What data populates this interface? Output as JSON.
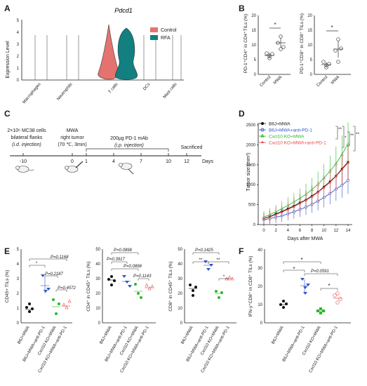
{
  "panels": {
    "A": "A",
    "B": "B",
    "C": "C",
    "D": "D",
    "E": "E",
    "F": "F"
  },
  "colors": {
    "control": "#e4736f",
    "rfa": "#127f80",
    "b6j": "#111111",
    "b6j_pd1": "#2f55c8",
    "cxcl10": "#2eb82e",
    "cxcl10_pd1": "#e8484a"
  },
  "panel_a": {
    "gene": "Pdcd1",
    "ylabel": "Expression Level",
    "y_ticks": [
      "0",
      "1",
      "2",
      "3",
      "4",
      "5"
    ],
    "categories": [
      "Macrophages",
      "Neutrophils",
      "T cells",
      "DCs",
      "Mast cells"
    ],
    "legend": [
      "Control",
      "RFA"
    ]
  },
  "panel_b": {
    "left": {
      "ylabel": "PD-1⁺CD4⁺ in CD4⁺TILs (%)",
      "y_ticks": [
        "0",
        "5",
        "10",
        "15",
        "20"
      ],
      "x": [
        "Control",
        "MWA"
      ],
      "sig": "*"
    },
    "right": {
      "ylabel": "PD-1⁺CD8⁺ in CD8⁺ TILs (%)",
      "y_ticks": [
        "0",
        "5",
        "10",
        "15",
        "20"
      ],
      "x": [
        "Control",
        "MWA"
      ],
      "sig": "*"
    }
  },
  "panel_c": {
    "cells_line1": "2×10⁶ MC38 cells",
    "cells_line2": "bilateral flanks",
    "cells_line3": "(i.d. injection)",
    "mwa_line1": "MWA",
    "mwa_line2": "right tumor",
    "mwa_line3": "(70 ℃, 3min)",
    "mab_line1": "200μg PD-1 mAb",
    "mab_line2": "(i.p. injection)",
    "sacrificed": "Sacrificed",
    "ticks": [
      "-10",
      "0",
      "1",
      "4",
      "7",
      "10",
      "12"
    ],
    "unit": "Days"
  },
  "panel_d": {
    "ylabel": "Tumor size (mm³)",
    "xlabel": "Days after MWA",
    "x_ticks": [
      "0",
      "2",
      "4",
      "6",
      "8",
      "10",
      "12",
      "14"
    ],
    "y_ticks": [
      "0",
      "500",
      "1000",
      "1500",
      "2000",
      "2500"
    ],
    "legend": [
      "B6J+MWA",
      "B6J+MWA+anti-PD-1",
      "Cxcl10 KO+MWA",
      "Cxcl10 KO+MWA+anti-PD-1"
    ],
    "sig": [
      "**",
      "*",
      "**",
      "**"
    ]
  },
  "chart_data": [
    {
      "type": "line",
      "title": "",
      "xlabel": "Days after MWA",
      "ylabel": "Tumor size (mm³)",
      "x": [
        0,
        1,
        2,
        3,
        4,
        5,
        6,
        7,
        8,
        9,
        10,
        11,
        12,
        13,
        14
      ],
      "ylim": [
        0,
        2500
      ],
      "series": [
        {
          "name": "B6J+MWA",
          "values": [
            160,
            200,
            270,
            330,
            400,
            470,
            550,
            620,
            720,
            820,
            950,
            1080,
            1220,
            1400,
            1570
          ]
        },
        {
          "name": "B6J+MWA+anti-PD-1",
          "values": [
            120,
            150,
            185,
            220,
            270,
            320,
            380,
            440,
            510,
            590,
            680,
            780,
            890,
            990,
            1110
          ]
        },
        {
          "name": "Cxcl10 KO+MWA",
          "values": [
            190,
            250,
            320,
            400,
            480,
            570,
            660,
            760,
            880,
            1010,
            1170,
            1340,
            1530,
            1760,
            2030
          ]
        },
        {
          "name": "Cxcl10 KO+MWA+anti-PD-1",
          "values": [
            150,
            190,
            250,
            310,
            380,
            450,
            530,
            610,
            700,
            810,
            930,
            1060,
            1210,
            1380,
            1550
          ]
        }
      ]
    }
  ],
  "panel_e": {
    "e1": {
      "ylabel": "CD45+ TILs (%)",
      "y_ticks": [
        "0",
        "1",
        "2",
        "3",
        "4",
        "5"
      ],
      "pvals": [
        "*",
        "P=0.1168",
        "P=0.2187",
        "P=0.4572"
      ]
    },
    "e2": {
      "ylabel": "CD4⁺ in CD45⁺ TILs (%)",
      "y_ticks": [
        "0",
        "10",
        "20",
        "30",
        "40",
        "50"
      ],
      "pvals": [
        "P=0.0898",
        "P=0.3917",
        "P=0.0898",
        "P=0.1143"
      ]
    },
    "e3": {
      "ylabel": "CD8⁺ in CD45⁺ TILs (%)",
      "y_ticks": [
        "0",
        "10",
        "20",
        "30",
        "40",
        "50"
      ],
      "pvals": [
        "P=0.1425",
        "**",
        "**",
        "*"
      ]
    },
    "x": [
      "B6J+MWA",
      "B6J+MWA+anti-PD-1",
      "Cxcl10 KO+MWA",
      "Cxcl10 KO+MWA+anti-PD-1"
    ]
  },
  "panel_f": {
    "ylabel": "IFN-γ⁺CD8⁺ in CD8⁺ TILs (%)",
    "y_ticks": [
      "0",
      "10",
      "20",
      "30",
      "40"
    ],
    "pvals": [
      "*",
      "*",
      "P=0.0591",
      "*"
    ],
    "x": [
      "B6J+MWA",
      "B6J+MWA+anti-PD-1",
      "Cxcl10 KO+MWA",
      "Cxcl10 KO+MWA+anti-PD-1"
    ]
  }
}
